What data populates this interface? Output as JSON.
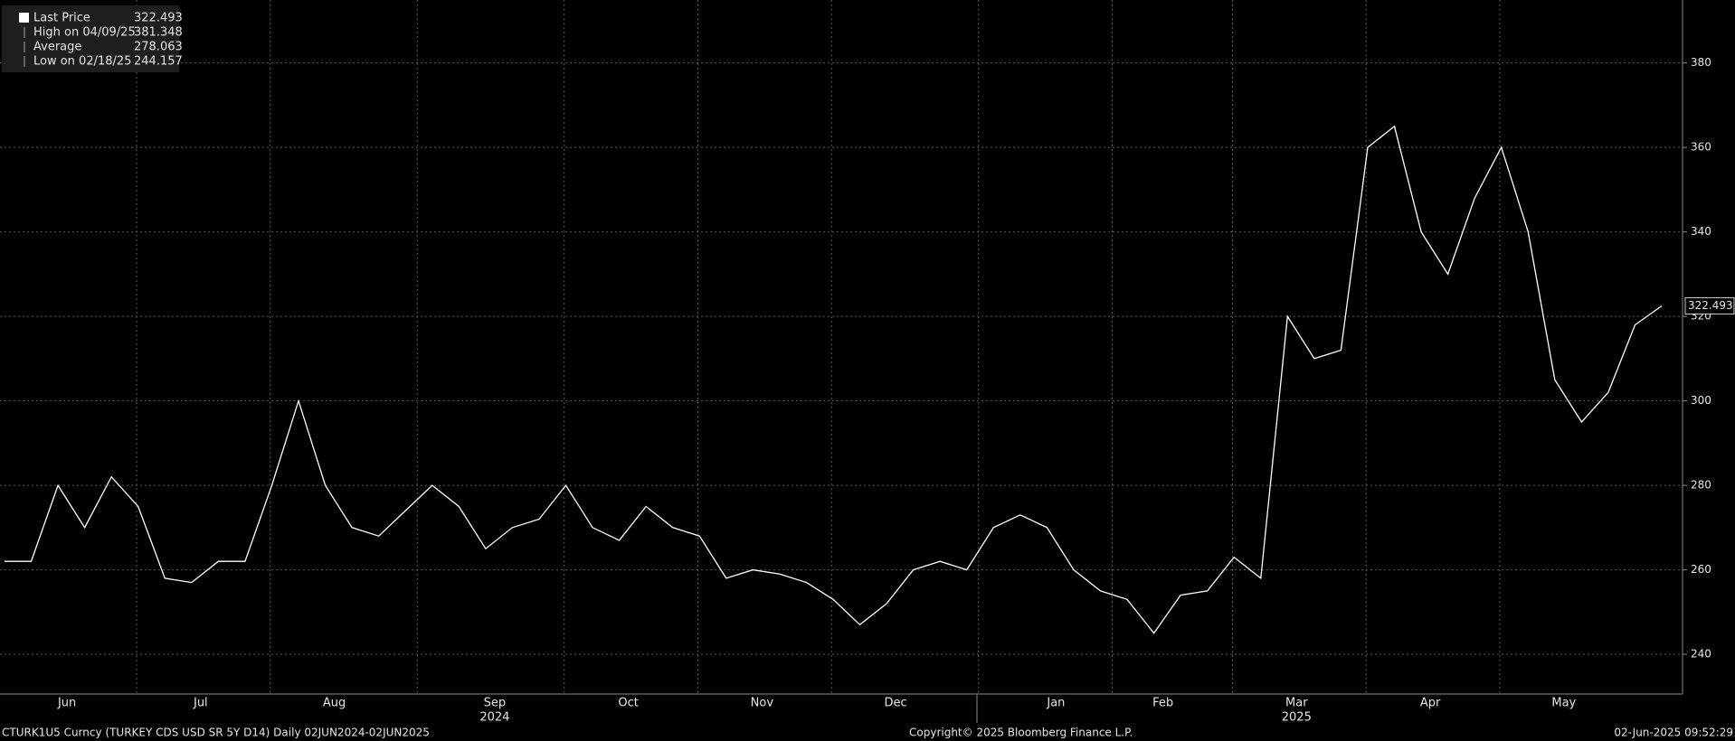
{
  "chart_data": {
    "type": "line",
    "legend": [
      {
        "label": "Last Price",
        "value": 322.493
      },
      {
        "label": "High on 04/09/25",
        "value": 381.348
      },
      {
        "label": "Average",
        "value": 278.063
      },
      {
        "label": "Low on 02/18/25",
        "value": 244.157
      }
    ],
    "categories": [
      null,
      null,
      "Jun",
      null,
      null,
      null,
      null,
      "Jul",
      null,
      null,
      null,
      null,
      "Aug",
      null,
      null,
      null,
      null,
      null,
      "Sep",
      null,
      null,
      null,
      null,
      "Oct",
      null,
      null,
      null,
      null,
      "Nov",
      null,
      null,
      null,
      null,
      "Dec",
      null,
      null,
      null,
      null,
      null,
      "Jan",
      null,
      null,
      null,
      "Feb",
      null,
      null,
      null,
      null,
      "Mar",
      null,
      null,
      null,
      null,
      "Apr",
      null,
      null,
      null,
      null,
      "May",
      null,
      null,
      null,
      null
    ],
    "years": [
      "2024",
      "2025"
    ],
    "values": [
      262,
      262,
      280,
      270,
      282,
      275,
      258,
      257,
      262,
      262,
      280,
      300,
      280,
      270,
      268,
      274,
      280,
      275,
      265,
      270,
      272,
      280,
      270,
      267,
      275,
      270,
      268,
      258,
      260,
      259,
      257,
      253,
      247,
      252,
      260,
      262,
      260,
      270,
      273,
      270,
      260,
      255,
      253,
      245,
      254,
      255,
      263,
      258,
      320,
      310,
      312,
      360,
      365,
      340,
      330,
      348,
      360,
      340,
      305,
      295,
      302,
      318,
      322.493
    ],
    "color": "#ffffff",
    "ylim": [
      230.6,
      394.9
    ],
    "yticks": [
      240,
      260,
      280,
      300,
      320,
      340,
      360,
      380
    ],
    "grid": true,
    "footer": {
      "left": "CTURK1U5 Curncy (TURKEY CDS USD SR 5Y D14)  Daily 02JUN2024-02JUN2025",
      "center": "Copyright© 2025 Bloomberg Finance L.P.",
      "right": "02-Jun-2025 09:52:29"
    }
  }
}
